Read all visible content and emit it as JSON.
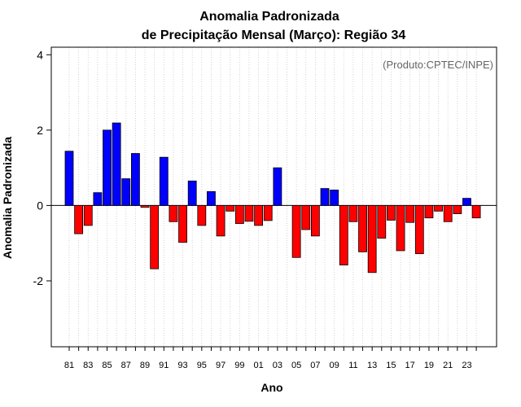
{
  "chart_data": {
    "type": "bar",
    "title_line1": "Anomalia Padronizada",
    "title_line2": "de Precipitação Mensal (Março): Região 34",
    "xlabel": "Ano",
    "ylabel": "Anomalia Padronizada",
    "credit": "(Produto:CPTEC/INPE)",
    "ylim": [
      -3.75,
      4.2
    ],
    "yticks": [
      -2,
      0,
      2,
      4
    ],
    "ytick_labels": [
      "-2",
      "0",
      "2",
      "4"
    ],
    "grid": "vertical dotted",
    "positive_color": "#0000ff",
    "negative_color": "#ff0000",
    "categories": [
      "81",
      "82",
      "83",
      "84",
      "85",
      "86",
      "87",
      "88",
      "89",
      "90",
      "91",
      "92",
      "93",
      "94",
      "95",
      "96",
      "97",
      "98",
      "99",
      "00",
      "01",
      "02",
      "03",
      "04",
      "05",
      "06",
      "07",
      "08",
      "09",
      "10",
      "11",
      "12",
      "13",
      "14",
      "15",
      "16",
      "17",
      "18",
      "19",
      "20",
      "21",
      "22",
      "23",
      "24"
    ],
    "x_tick_labels": [
      "81",
      "83",
      "85",
      "87",
      "89",
      "91",
      "93",
      "95",
      "97",
      "99",
      "01",
      "03",
      "05",
      "07",
      "09",
      "11",
      "13",
      "15",
      "17",
      "19",
      "21",
      "23"
    ],
    "values": [
      1.44,
      -0.75,
      -0.53,
      0.34,
      2.0,
      2.19,
      0.71,
      1.38,
      -0.05,
      -1.68,
      1.28,
      -0.43,
      -0.98,
      0.65,
      -0.53,
      0.37,
      -0.81,
      -0.15,
      -0.48,
      -0.42,
      -0.53,
      -0.4,
      1.0,
      0.0,
      -1.38,
      -0.64,
      -0.81,
      0.45,
      0.41,
      -1.58,
      -0.43,
      -1.23,
      -1.78,
      -0.87,
      -0.39,
      -1.2,
      -0.45,
      -1.28,
      -0.33,
      -0.15,
      -0.43,
      -0.22,
      0.19,
      -0.33
    ]
  }
}
